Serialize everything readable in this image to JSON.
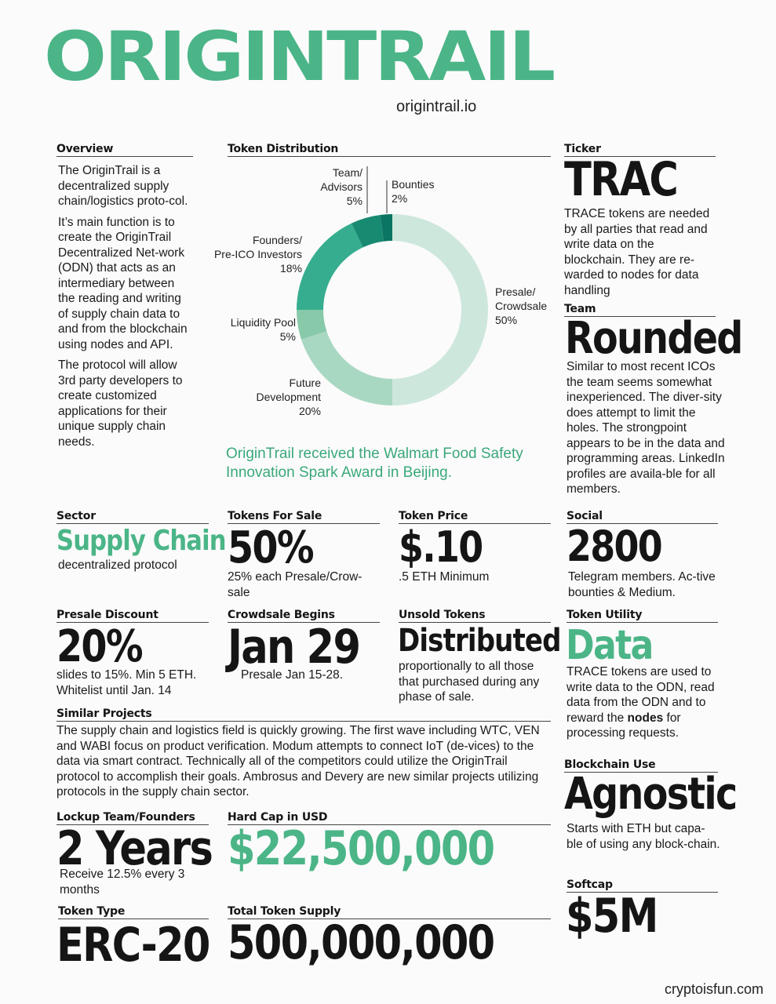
{
  "header": {
    "logo": "ORIGINTRAIL",
    "website": "origintrail.io"
  },
  "overview": {
    "label": "Overview",
    "paragraphs": [
      "The OriginTrail is a decentralized supply chain/logistics proto-col.",
      "It’s main function is to create the OriginTrail Decentralized Net-work (ODN) that acts as an intermediary between the reading and writing of supply chain data to and from the blockchain using nodes and API.",
      "The protocol will allow 3rd party developers to create customized applications for their unique supply chain needs."
    ]
  },
  "token_distribution": {
    "label": "Token Distribution",
    "slice_labels": {
      "bounties": [
        "Bounties",
        "2%"
      ],
      "team": [
        "Team/",
        "Advisors",
        "5%"
      ],
      "founders": [
        "Founders/",
        "Pre-ICO Investors",
        "18%"
      ],
      "liquidity": [
        "Liquidity Pool",
        "5%"
      ],
      "future": [
        "Future",
        "Development",
        "20%"
      ],
      "presale": [
        "Presale/",
        "Crowdsale",
        "50%"
      ]
    }
  },
  "chart_data": {
    "type": "pie",
    "labels": [
      "Presale/ Crowdsale",
      "Future Development",
      "Liquidity Pool",
      "Founders/ Pre-ICO Investors",
      "Team/ Advisors",
      "Bounties"
    ],
    "values": [
      50,
      20,
      5,
      18,
      5,
      2
    ],
    "colors": [
      "#cde7dc",
      "#a9d8c2",
      "#88c9a9",
      "#36ad8e",
      "#198a72",
      "#0c7463"
    ]
  },
  "award": "OriginTrail received the Walmart Food Safety Innovation Spark Award in Beijing.",
  "ticker": {
    "label": "Ticker",
    "value": "TRAC",
    "text": "TRACE tokens are needed by all parties that read and write data on the blockchain.  They are re-warded to nodes for data handling"
  },
  "team": {
    "label": "Team",
    "value": "Rounded",
    "text": "Similar to most recent ICOs the team seems somewhat inexperienced.  The diver-sity does attempt to limit the holes. The strongpoint appears to be in the data and programming areas. LinkedIn profiles are availa-ble for all members."
  },
  "sector": {
    "label": "Sector",
    "value": "Supply Chain",
    "text": "decentralized protocol"
  },
  "tokens_for_sale": {
    "label": "Tokens For Sale",
    "value": "50%",
    "text": "25% each Presale/Crow-sale"
  },
  "token_price": {
    "label": "Token Price",
    "value": "$.10",
    "text": ".5 ETH Minimum"
  },
  "social": {
    "label": "Social",
    "value": "2800",
    "text": "Telegram members.  Ac-tive bounties & Medium."
  },
  "presale_discount": {
    "label": "Presale Discount",
    "value": "20%",
    "text": "slides to 15%.  Min 5 ETH. Whitelist until Jan. 14"
  },
  "crowdsale": {
    "label": "Crowdsale Begins",
    "value": "Jan 29",
    "text": "Presale Jan 15-28."
  },
  "unsold": {
    "label": "Unsold Tokens",
    "value": "Distributed",
    "text": "proportionally to all those that purchased during any phase of sale."
  },
  "utility": {
    "label": "Token Utility",
    "value": "Data",
    "text_before": "TRACE tokens are used to write data to the ODN, read data from the ODN and to reward the ",
    "text_bold": "nodes",
    "text_after": " for processing requests."
  },
  "similar": {
    "label": "Similar Projects",
    "text": "The supply chain and logistics field is quickly growing.  The first wave including WTC, VEN and WABI focus on product verification.  Modum attempts to connect IoT (de-vices) to the data via smart contract.  Technically all of the competitors could utilize the OriginTrail protocol to accomplish their goals.  Ambrosus and Devery are new similar projects utilizing protocols in the supply chain sector."
  },
  "blockchain": {
    "label": "Blockchain Use",
    "value": "Agnostic",
    "text": "Starts with ETH but capa-ble of using any block-chain."
  },
  "lockup": {
    "label": "Lockup Team/Founders",
    "value": "2 Years",
    "text": "Receive 12.5% every 3 months"
  },
  "hardcap": {
    "label": "Hard Cap in USD",
    "value": "$22,500,000"
  },
  "softcap": {
    "label": "Softcap",
    "value": "$5M"
  },
  "token_type": {
    "label": "Token Type",
    "value": "ERC-20"
  },
  "total_supply": {
    "label": "Total Token Supply",
    "value": "500,000,000"
  },
  "footer": "cryptoisfun.com"
}
